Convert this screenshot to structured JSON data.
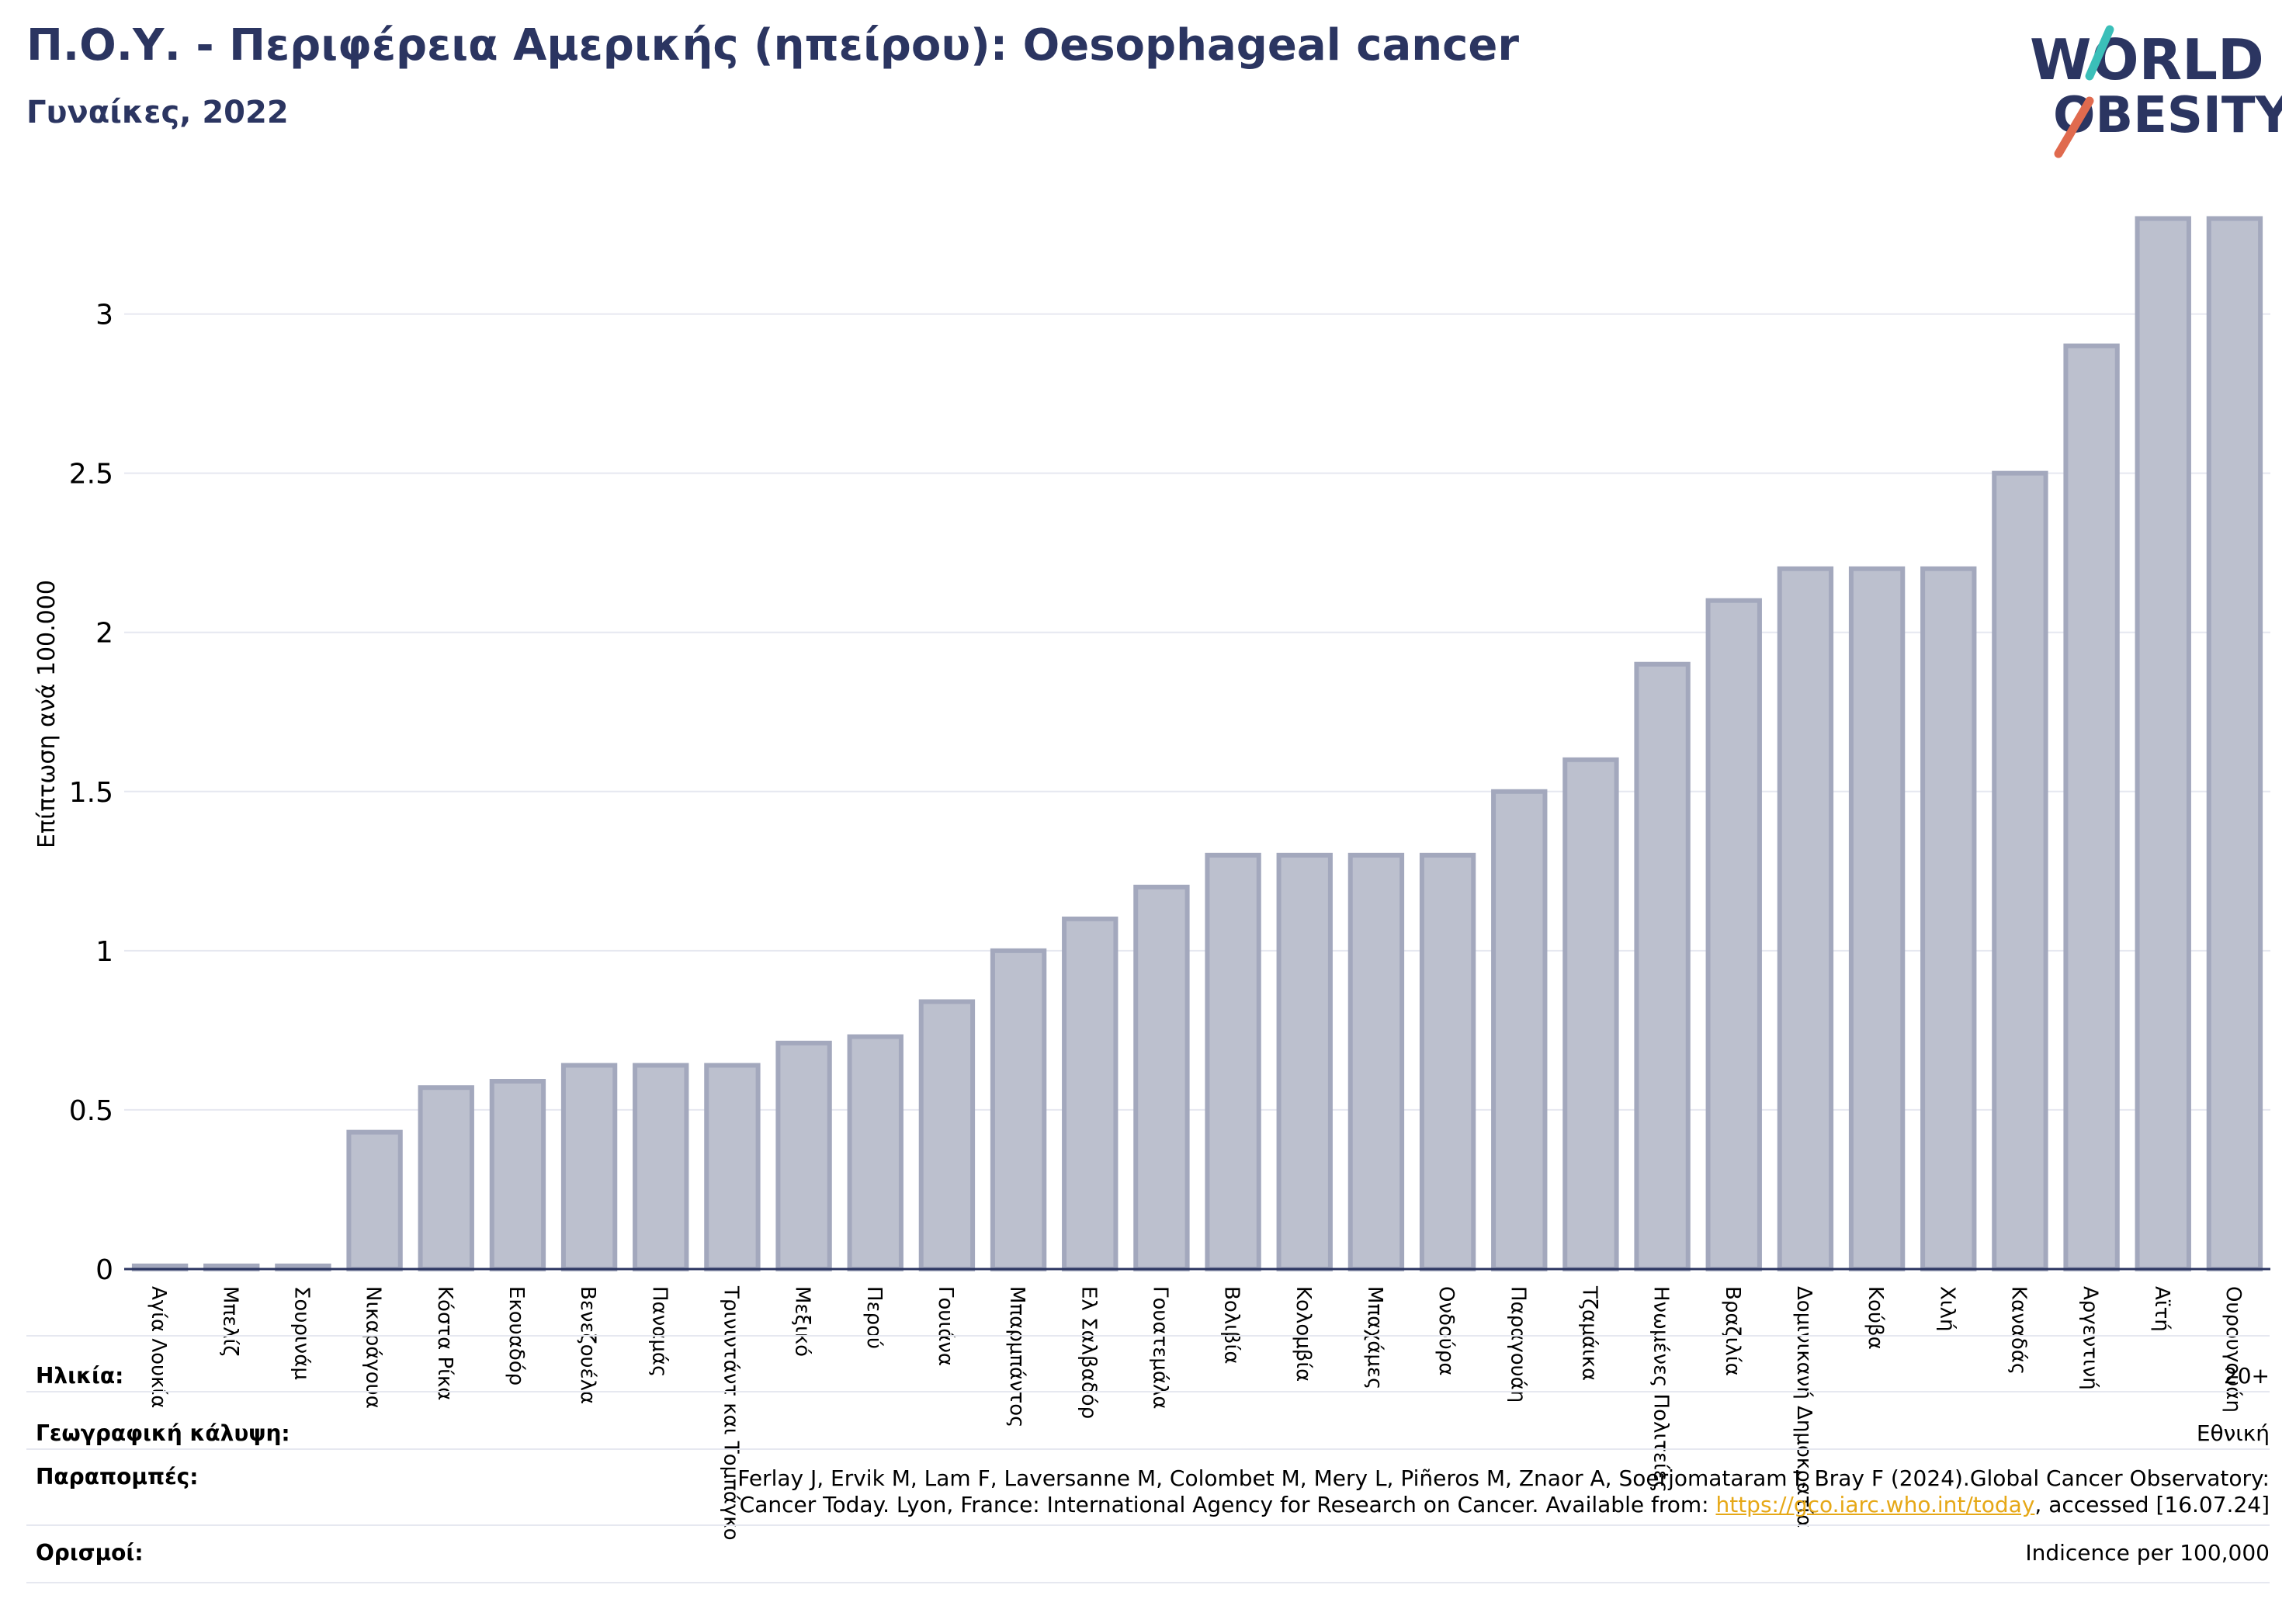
{
  "header": {
    "title": "Π.Ο.Υ. - Περιφέρεια Αμερικής (ηπείρου): Oesophageal cancer",
    "subtitle": "Γυναίκες, 2022"
  },
  "logo": {
    "line1": "WORLD",
    "line2": "OBESITY"
  },
  "colors": {
    "bar_fill": "#bcc0ce",
    "bar_stroke": "#a3a8bd",
    "title": "#2b3561",
    "logo_teal": "#3bbfb9",
    "logo_red": "#e06a4e",
    "link": "#e6a817"
  },
  "chart_data": {
    "type": "bar",
    "title": "Π.Ο.Υ. - Περιφέρεια Αμερικής (ηπείρου): Oesophageal cancer",
    "subtitle": "Γυναίκες, 2022",
    "ylabel": "Επίπτωση ανά 100.000",
    "ylim": [
      0,
      3.3
    ],
    "yticks": [
      0,
      0.5,
      1,
      1.5,
      2,
      2.5,
      3
    ],
    "ytick_labels": [
      "0",
      "0.5",
      "1",
      "1.5",
      "2",
      "2.5",
      "3"
    ],
    "grid": true,
    "categories": [
      "Αγία Λουκία",
      "Μπελίζ",
      "Σουρινάμ",
      "Νικαράγουα",
      "Κόστα Ρίκα",
      "Εκουαδόρ",
      "Βενεζουέλα",
      "Παναμάς",
      "Τρινιντάντ και Τομπάγκο",
      "Μεξικό",
      "Περού",
      "Γουιάνα",
      "Μπαρμπάντος",
      "Ελ Σαλβαδόρ",
      "Γουατεμάλα",
      "Βολιβία",
      "Κολομβία",
      "Μπαχάμες",
      "Ονδούρα",
      "Παραγουάη",
      "Τζαμάικα",
      "Ηνωμένες Πολιτείες",
      "Βραζιλία",
      "Δομινικανή Δημοκρατία",
      "Κούβα",
      "Χιλή",
      "Καναδάς",
      "Αργεντινή",
      "Αϊτή",
      "Ουρουγουάη"
    ],
    "values": [
      0.01,
      0.01,
      0.01,
      0.43,
      0.57,
      0.59,
      0.64,
      0.64,
      0.64,
      0.71,
      0.73,
      0.84,
      1.0,
      1.1,
      1.2,
      1.3,
      1.3,
      1.3,
      1.3,
      1.5,
      1.6,
      1.9,
      2.1,
      2.2,
      2.2,
      2.2,
      2.5,
      2.9,
      3.3,
      3.3
    ]
  },
  "meta": {
    "age_label": "Ηλικία:",
    "age_value": "20+",
    "coverage_label": "Γεωγραφική κάλυψη:",
    "coverage_value": "Εθνική",
    "refs_label": "Παραπομπές:",
    "refs_line1": "Ferlay J, Ervik M, Lam F, Laversanne M, Colombet M, Mery L, Piñeros M, Znaor A, Soerjomataram I, Bray F (2024).Global Cancer Observatory:",
    "refs_line2_pre": "Cancer Today. Lyon, France: International Agency for Research on Cancer. Available from: ",
    "refs_link": "https://gco.iarc.who.int/today",
    "refs_line2_post": ", accessed [16.07.24]",
    "defs_label": "Ορισμοί:",
    "defs_value": "Indicence per 100,000"
  }
}
